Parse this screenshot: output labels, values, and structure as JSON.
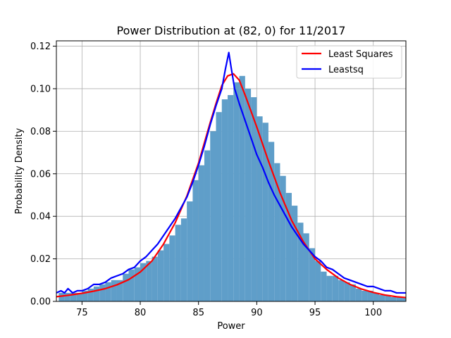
{
  "chart_data": {
    "type": "bar",
    "title": "Power Distribution at (82, 0) for 11/2017",
    "xlabel": "Power",
    "ylabel": "Probability Density",
    "xlim": [
      72.8,
      102.8
    ],
    "ylim": [
      0,
      0.1225
    ],
    "xticks": [
      75,
      80,
      85,
      90,
      95,
      100
    ],
    "yticks": [
      0.0,
      0.02,
      0.04,
      0.06,
      0.08,
      0.1,
      0.12
    ],
    "ytick_labels": [
      "0.00",
      "0.02",
      "0.04",
      "0.06",
      "0.08",
      "0.10",
      "0.12"
    ],
    "grid": true,
    "legend_position": "top-right",
    "histogram": {
      "color": "#5f9ec9",
      "bin_width": 0.5,
      "bins": [
        [
          73.0,
          0.004
        ],
        [
          73.5,
          0.004
        ],
        [
          74.0,
          0.004
        ],
        [
          74.5,
          0.004
        ],
        [
          75.0,
          0.005
        ],
        [
          75.5,
          0.006
        ],
        [
          76.0,
          0.007
        ],
        [
          76.5,
          0.008
        ],
        [
          77.0,
          0.009
        ],
        [
          77.5,
          0.01
        ],
        [
          78.0,
          0.01
        ],
        [
          78.5,
          0.013
        ],
        [
          79.0,
          0.015
        ],
        [
          79.5,
          0.016
        ],
        [
          80.0,
          0.018
        ],
        [
          80.5,
          0.019
        ],
        [
          81.0,
          0.021
        ],
        [
          81.5,
          0.024
        ],
        [
          82.0,
          0.027
        ],
        [
          82.5,
          0.031
        ],
        [
          83.0,
          0.036
        ],
        [
          83.5,
          0.039
        ],
        [
          84.0,
          0.047
        ],
        [
          84.5,
          0.057
        ],
        [
          85.0,
          0.064
        ],
        [
          85.5,
          0.071
        ],
        [
          86.0,
          0.08
        ],
        [
          86.5,
          0.089
        ],
        [
          87.0,
          0.095
        ],
        [
          87.5,
          0.097
        ],
        [
          88.0,
          0.103
        ],
        [
          88.5,
          0.106
        ],
        [
          89.0,
          0.1
        ],
        [
          89.5,
          0.096
        ],
        [
          90.0,
          0.087
        ],
        [
          90.5,
          0.084
        ],
        [
          91.0,
          0.075
        ],
        [
          91.5,
          0.065
        ],
        [
          92.0,
          0.059
        ],
        [
          92.5,
          0.051
        ],
        [
          93.0,
          0.045
        ],
        [
          93.5,
          0.037
        ],
        [
          94.0,
          0.032
        ],
        [
          94.5,
          0.025
        ],
        [
          95.0,
          0.019
        ],
        [
          95.5,
          0.014
        ],
        [
          96.0,
          0.012
        ],
        [
          96.5,
          0.012
        ],
        [
          97.0,
          0.01
        ],
        [
          97.5,
          0.009
        ],
        [
          98.0,
          0.008
        ],
        [
          98.5,
          0.006
        ],
        [
          99.0,
          0.005
        ],
        [
          99.5,
          0.005
        ],
        [
          100.0,
          0.004
        ],
        [
          100.5,
          0.003
        ],
        [
          101.0,
          0.003
        ],
        [
          101.5,
          0.002
        ],
        [
          102.0,
          0.002
        ],
        [
          102.5,
          0.002
        ]
      ]
    },
    "series": [
      {
        "name": "Least Squares",
        "color": "#ff0000",
        "x": [
          72.8,
          74,
          75,
          76,
          77,
          78,
          79,
          80,
          81,
          82,
          83,
          84,
          85,
          86,
          86.5,
          87,
          87.5,
          88,
          88.5,
          89,
          90,
          91,
          92,
          93,
          94,
          95,
          96,
          97,
          98,
          99,
          100,
          101,
          102,
          102.8
        ],
        "y": [
          0.0022,
          0.003,
          0.0038,
          0.0048,
          0.006,
          0.0078,
          0.0102,
          0.0138,
          0.019,
          0.027,
          0.037,
          0.0495,
          0.065,
          0.084,
          0.093,
          0.1015,
          0.106,
          0.107,
          0.104,
          0.097,
          0.082,
          0.066,
          0.051,
          0.038,
          0.028,
          0.02,
          0.015,
          0.011,
          0.008,
          0.0058,
          0.0042,
          0.003,
          0.0022,
          0.0018
        ]
      },
      {
        "name": "Leastsq",
        "color": "#0000ff",
        "x": [
          72.8,
          73.2,
          73.5,
          73.8,
          74.2,
          74.6,
          75,
          75.5,
          76,
          76.5,
          77,
          77.5,
          78,
          78.5,
          79,
          79.5,
          80,
          80.5,
          81,
          81.5,
          82,
          82.5,
          83,
          83.5,
          84,
          84.5,
          85,
          85.5,
          86,
          86.5,
          87,
          87.3,
          87.6,
          87.8,
          88.1,
          88.5,
          89,
          89.5,
          90,
          90.5,
          91,
          91.5,
          92,
          92.5,
          93,
          93.5,
          94,
          94.5,
          95,
          95.5,
          96,
          96.5,
          97,
          97.5,
          98,
          98.5,
          99,
          99.5,
          100,
          100.5,
          101,
          101.5,
          102,
          102.8
        ],
        "y": [
          0.004,
          0.005,
          0.004,
          0.006,
          0.004,
          0.005,
          0.005,
          0.006,
          0.008,
          0.008,
          0.009,
          0.011,
          0.012,
          0.013,
          0.015,
          0.016,
          0.019,
          0.021,
          0.024,
          0.027,
          0.031,
          0.035,
          0.039,
          0.044,
          0.049,
          0.056,
          0.064,
          0.073,
          0.083,
          0.092,
          0.1,
          0.109,
          0.117,
          0.11,
          0.1,
          0.093,
          0.085,
          0.077,
          0.069,
          0.063,
          0.056,
          0.05,
          0.045,
          0.04,
          0.035,
          0.031,
          0.027,
          0.024,
          0.021,
          0.019,
          0.016,
          0.015,
          0.013,
          0.011,
          0.01,
          0.009,
          0.008,
          0.007,
          0.007,
          0.006,
          0.005,
          0.005,
          0.004,
          0.004
        ]
      }
    ]
  }
}
